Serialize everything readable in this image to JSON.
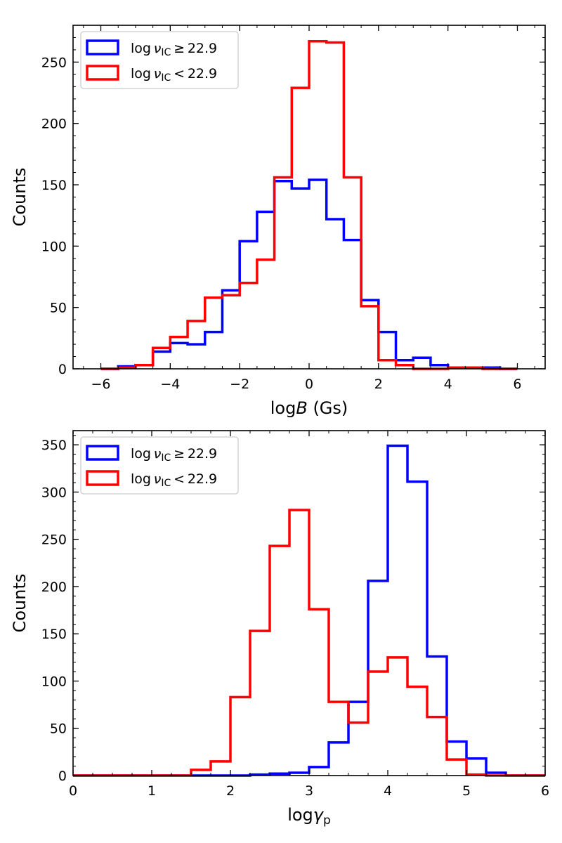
{
  "chart_data": [
    {
      "type": "histogram",
      "xlabel": "logB (Gs)",
      "xlabel_main": "log",
      "xlabel_var": "B",
      "xlabel_unit": "(Gs)",
      "ylabel": "Counts",
      "xlim": [
        -6.8,
        6.8
      ],
      "ylim": [
        0,
        280
      ],
      "xticks": [
        -6,
        -4,
        -2,
        0,
        2,
        4,
        6
      ],
      "xtick_labels": [
        "−6",
        "−4",
        "−2",
        "0",
        "2",
        "4",
        "6"
      ],
      "yticks": [
        0,
        50,
        100,
        150,
        200,
        250
      ],
      "ytick_labels": [
        "0",
        "50",
        "100",
        "150",
        "200",
        "250"
      ],
      "legend": {
        "position": "top-left",
        "entries": [
          {
            "prefix": "log",
            "nu": "ν",
            "sub": "IC",
            "rel": "≥",
            "value": "22.9",
            "color": "#0000ff"
          },
          {
            "prefix": "log",
            "nu": "ν",
            "sub": "IC",
            "rel": "<",
            "value": "22.9",
            "color": "#ff0000"
          }
        ]
      },
      "series": [
        {
          "name": "log ν_IC ≥ 22.9",
          "color": "#0000ff",
          "bin_edges": [
            -6,
            -5.5,
            -5,
            -4.5,
            -4,
            -3.5,
            -3,
            -2.5,
            -2,
            -1.5,
            -1,
            -0.5,
            0,
            0.5,
            1,
            1.5,
            2,
            2.5,
            3,
            3.5,
            4,
            4.5,
            5,
            5.5,
            6
          ],
          "counts": [
            0,
            2,
            3,
            14,
            21,
            20,
            30,
            64,
            104,
            128,
            153,
            147,
            154,
            122,
            105,
            56,
            30,
            7,
            9,
            3,
            1,
            1,
            1,
            0
          ]
        },
        {
          "name": "log ν_IC < 22.9",
          "color": "#ff0000",
          "bin_edges": [
            -6,
            -5.5,
            -5,
            -4.5,
            -4,
            -3.5,
            -3,
            -2.5,
            -2,
            -1.5,
            -1,
            -0.5,
            0,
            0.5,
            1,
            1.5,
            2,
            2.5,
            3,
            3.5,
            4,
            4.5,
            5,
            5.5,
            6
          ],
          "counts": [
            0,
            1,
            3,
            17,
            26,
            39,
            58,
            60,
            70,
            89,
            156,
            229,
            267,
            266,
            156,
            51,
            7,
            3,
            0,
            0,
            1,
            1,
            0,
            0
          ]
        }
      ]
    },
    {
      "type": "histogram",
      "xlabel": "logγp",
      "xlabel_main": "log",
      "xlabel_var": "γ",
      "xlabel_sub": "p",
      "ylabel": "Counts",
      "xlim": [
        0,
        6
      ],
      "ylim": [
        0,
        365
      ],
      "xticks": [
        0,
        1,
        2,
        3,
        4,
        5,
        6
      ],
      "xtick_labels": [
        "0",
        "1",
        "2",
        "3",
        "4",
        "5",
        "6"
      ],
      "yticks": [
        0,
        50,
        100,
        150,
        200,
        250,
        300,
        350
      ],
      "ytick_labels": [
        "0",
        "50",
        "100",
        "150",
        "200",
        "250",
        "300",
        "350"
      ],
      "legend": {
        "position": "top-left",
        "entries": [
          {
            "prefix": "log",
            "nu": "ν",
            "sub": "IC",
            "rel": "≥",
            "value": "22.9",
            "color": "#0000ff"
          },
          {
            "prefix": "log",
            "nu": "ν",
            "sub": "IC",
            "rel": "<",
            "value": "22.9",
            "color": "#ff0000"
          }
        ]
      },
      "series": [
        {
          "name": "log ν_IC ≥ 22.9",
          "color": "#0000ff",
          "bin_edges": [
            0,
            0.25,
            0.5,
            0.75,
            1,
            1.25,
            1.5,
            1.75,
            2,
            2.25,
            2.5,
            2.75,
            3,
            3.25,
            3.5,
            3.75,
            4,
            4.25,
            4.5,
            4.75,
            5,
            5.25,
            5.5,
            5.75,
            6
          ],
          "counts": [
            0,
            0,
            0,
            0,
            0,
            0,
            0,
            0,
            0,
            1,
            2,
            3,
            9,
            35,
            78,
            206,
            349,
            311,
            126,
            36,
            18,
            3,
            0,
            0
          ]
        },
        {
          "name": "log ν_IC < 22.9",
          "color": "#ff0000",
          "bin_edges": [
            0,
            0.25,
            0.5,
            0.75,
            1,
            1.25,
            1.5,
            1.75,
            2,
            2.25,
            2.5,
            2.75,
            3,
            3.25,
            3.5,
            3.75,
            4,
            4.25,
            4.5,
            4.75,
            5,
            5.25,
            5.5,
            5.75,
            6
          ],
          "counts": [
            0,
            0,
            0,
            0,
            0,
            0,
            6,
            15,
            83,
            153,
            243,
            281,
            176,
            78,
            56,
            110,
            125,
            94,
            62,
            17,
            1,
            0,
            0,
            0
          ]
        }
      ]
    }
  ]
}
